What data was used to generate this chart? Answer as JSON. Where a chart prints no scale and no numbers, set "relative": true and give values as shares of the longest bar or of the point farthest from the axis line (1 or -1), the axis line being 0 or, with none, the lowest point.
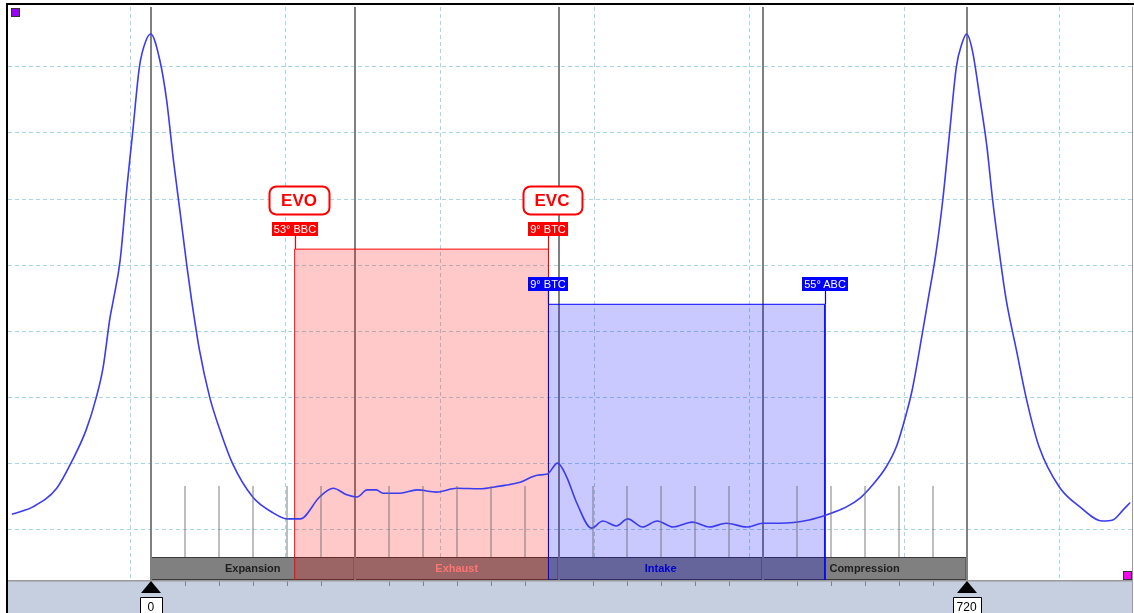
{
  "chart_data": {
    "type": "line",
    "relative": true,
    "grid": true,
    "xlim": [
      -126,
      866
    ],
    "xticks": [
      0,
      {
        "value": 30,
        "label": null
      },
      {
        "value": 60,
        "label": null
      },
      {
        "value": 90,
        "label": null
      },
      {
        "value": 120,
        "label": null
      },
      {
        "value": 150,
        "label": null
      },
      {
        "value": 210,
        "label": null
      },
      {
        "value": 240,
        "label": null
      },
      {
        "value": 270,
        "label": null
      },
      {
        "value": 300,
        "label": null
      },
      {
        "value": 330,
        "label": null
      },
      {
        "value": 390,
        "label": null
      },
      {
        "value": 420,
        "label": null
      },
      {
        "value": 450,
        "label": null
      },
      {
        "value": 480,
        "label": null
      },
      {
        "value": 510,
        "label": null
      },
      {
        "value": 570,
        "label": null
      },
      {
        "value": 600,
        "label": null
      },
      {
        "value": 630,
        "label": null
      },
      {
        "value": 660,
        "label": null
      },
      {
        "value": 690,
        "label": null
      },
      720
    ],
    "series": [
      {
        "color": "#3b3bf0",
        "x": [
          -122,
          -104,
          -83,
          -69,
          -57,
          -48,
          -42,
          -36,
          -33,
          -27,
          -21,
          -16,
          -10,
          -4,
          0,
          8,
          14,
          20,
          26,
          32,
          36,
          43,
          52,
          61,
          72,
          90,
          108,
          120,
          132,
          149,
          161,
          173,
          182,
          191,
          199,
          205,
          220,
          235,
          252,
          270,
          290,
          308,
          326,
          341,
          350,
          359,
          367,
          376,
          389,
          399,
          411,
          421,
          434,
          447,
          461,
          478,
          493,
          508,
          526,
          540,
          555,
          581,
          596,
          614,
          626,
          637,
          649,
          658,
          667,
          672,
          681,
          686,
          693,
          699,
          705,
          711,
          716,
          720,
          725,
          732,
          738,
          743,
          749,
          755,
          764,
          773,
          784,
          802,
          820,
          840,
          849,
          858,
          864
        ],
        "values": [
          0.121,
          0.134,
          0.168,
          0.22,
          0.275,
          0.335,
          0.39,
          0.48,
          0.513,
          0.586,
          0.72,
          0.819,
          0.94,
          0.989,
          1,
          0.952,
          0.879,
          0.769,
          0.672,
          0.573,
          0.513,
          0.421,
          0.335,
          0.275,
          0.214,
          0.152,
          0.123,
          0.112,
          0.112,
          0.152,
          0.168,
          0.156,
          0.152,
          0.165,
          0.165,
          0.159,
          0.159,
          0.165,
          0.161,
          0.168,
          0.167,
          0.172,
          0.179,
          0.192,
          0.194,
          0.214,
          0.189,
          0.141,
          0.095,
          0.108,
          0.099,
          0.112,
          0.097,
          0.108,
          0.097,
          0.106,
          0.097,
          0.104,
          0.097,
          0.104,
          0.104,
          0.11,
          0.119,
          0.134,
          0.15,
          0.174,
          0.207,
          0.244,
          0.306,
          0.348,
          0.452,
          0.513,
          0.599,
          0.696,
          0.819,
          0.94,
          0.983,
          1,
          0.971,
          0.879,
          0.793,
          0.696,
          0.599,
          0.513,
          0.421,
          0.33,
          0.244,
          0.17,
          0.134,
          0.108,
          0.11,
          0.128,
          0.141
        ]
      },
      {
        "type": "area",
        "color": "#ff0000",
        "x": [
          127,
          127,
          351,
          351
        ],
        "values": [
          0,
          0.606,
          0.606,
          0
        ]
      },
      {
        "type": "area",
        "color": "#0000ff",
        "x": [
          351,
          351,
          595,
          595
        ],
        "values": [
          0,
          0.505,
          0.505,
          0
        ]
      }
    ],
    "bands": [
      {
        "axis": "x",
        "from": 0,
        "to": 180,
        "label": "Expansion",
        "color": "#808080"
      },
      {
        "axis": "x",
        "from": 180,
        "to": 360,
        "label": "Exhaust",
        "color": "#808080"
      },
      {
        "axis": "x",
        "from": 360,
        "to": 540,
        "label": "Intake",
        "color": "#808080"
      },
      {
        "axis": "x",
        "from": 540,
        "to": 720,
        "label": "Compression",
        "color": "#808080"
      }
    ],
    "ref_lines": [
      {
        "axis": "x",
        "value": 180,
        "color": "#808080"
      },
      {
        "axis": "x",
        "value": 360,
        "color": "#808080"
      },
      {
        "axis": "x",
        "value": 540,
        "color": "#808080"
      }
    ],
    "annotations": [
      {
        "text": "EVO",
        "x": 127,
        "y": 0.606
      },
      {
        "text": "53° BBC",
        "x": 127,
        "y": 0.606
      },
      {
        "text": "EVC",
        "x": 351,
        "y": 0.606
      },
      {
        "text": "9° BTC",
        "x": 351,
        "y": 0.606
      },
      {
        "text": "9° BTC",
        "x": 351,
        "y": 0.505
      },
      {
        "text": "55° ABC",
        "x": 595,
        "y": 0.505
      }
    ]
  }
}
